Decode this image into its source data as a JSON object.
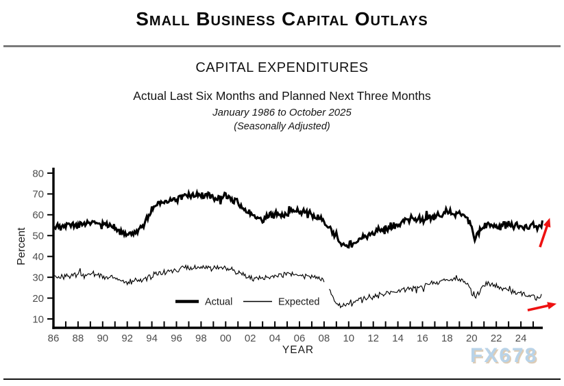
{
  "header": {
    "title": "Small Business Capital Outlays",
    "divider_color": "#7a7a7a"
  },
  "chart_header": {
    "title": "CAPITAL EXPENDITURES",
    "subtitle": "Actual Last Six Months and Planned Next Three Months",
    "period": "January 1986 to October 2025",
    "note": "(Seasonally Adjusted)"
  },
  "watermark": {
    "text": "FX678",
    "color": "#b9d3e8",
    "shadow_color": "#ddccb6"
  },
  "footer": {
    "rule_color": "#141414"
  },
  "chart_data": {
    "type": "line",
    "title": "CAPITAL EXPENDITURES",
    "xlabel": "YEAR",
    "ylabel": "Percent",
    "frequency": "monthly",
    "x_range": [
      1986.0,
      2025.75
    ],
    "ylim": [
      10,
      80
    ],
    "y_ticks": [
      10,
      20,
      30,
      40,
      50,
      60,
      70,
      80
    ],
    "x_ticks": [
      {
        "year": 1986,
        "label": "86"
      },
      {
        "year": 1988,
        "label": "88"
      },
      {
        "year": 1990,
        "label": "90"
      },
      {
        "year": 1992,
        "label": "92"
      },
      {
        "year": 1994,
        "label": "94"
      },
      {
        "year": 1996,
        "label": "96"
      },
      {
        "year": 1998,
        "label": "98"
      },
      {
        "year": 2000,
        "label": "00"
      },
      {
        "year": 2002,
        "label": "02"
      },
      {
        "year": 2004,
        "label": "04"
      },
      {
        "year": 2006,
        "label": "06"
      },
      {
        "year": 2008,
        "label": "08"
      },
      {
        "year": 2010,
        "label": "10"
      },
      {
        "year": 2012,
        "label": "12"
      },
      {
        "year": 2014,
        "label": "14"
      },
      {
        "year": 2016,
        "label": "16"
      },
      {
        "year": 2018,
        "label": "18"
      },
      {
        "year": 2020,
        "label": "20"
      },
      {
        "year": 2022,
        "label": "22"
      },
      {
        "year": 2024,
        "label": "24"
      }
    ],
    "grid": false,
    "legend": {
      "position": "inside-bottom-center",
      "entries": [
        "Actual",
        "Expected"
      ]
    },
    "line_color": "#000000",
    "axis_color": "#000000",
    "tick_label_color": "#4d4d4d",
    "series": [
      {
        "name": "Actual",
        "stroke_width": 3.1,
        "noise_amplitude": 2.1,
        "segments": [
          [
            [
              1986.0,
              55
            ],
            [
              1986.7,
              54
            ],
            [
              1987.5,
              55
            ],
            [
              1988.5,
              55.5
            ],
            [
              1989.3,
              56.5
            ],
            [
              1990.2,
              55.5
            ],
            [
              1991.0,
              53.5
            ],
            [
              1991.8,
              51
            ],
            [
              1992.8,
              51.5
            ],
            [
              1993.5,
              57
            ],
            [
              1994.2,
              64
            ],
            [
              1995.0,
              66
            ],
            [
              1996.0,
              68
            ],
            [
              1997.0,
              69.5
            ],
            [
              1998.2,
              69.5
            ],
            [
              1999.0,
              68
            ],
            [
              2000.2,
              68.5
            ],
            [
              2001.0,
              65.5
            ],
            [
              2002.0,
              61
            ],
            [
              2003.0,
              58
            ],
            [
              2004.0,
              60
            ],
            [
              2005.0,
              61
            ],
            [
              2006.2,
              62
            ],
            [
              2007.0,
              60.5
            ],
            [
              2008.0,
              56.5
            ],
            [
              2008.8,
              51
            ],
            [
              2009.5,
              45.5
            ],
            [
              2010.2,
              45.5
            ],
            [
              2011.0,
              48.5
            ],
            [
              2012.0,
              51.5
            ],
            [
              2013.0,
              53.5
            ],
            [
              2014.0,
              55.5
            ],
            [
              2015.0,
              58
            ],
            [
              2016.0,
              57.5
            ],
            [
              2017.0,
              59
            ],
            [
              2018.0,
              60.5
            ],
            [
              2018.8,
              60.5
            ],
            [
              2019.6,
              58.5
            ],
            [
              2020.25,
              48.5
            ],
            [
              2020.7,
              52.5
            ],
            [
              2021.3,
              55.5
            ],
            [
              2022.0,
              54.5
            ],
            [
              2022.8,
              55
            ],
            [
              2023.5,
              54.5
            ],
            [
              2024.2,
              54
            ],
            [
              2024.9,
              55
            ],
            [
              2025.4,
              53.5
            ],
            [
              2025.75,
              55.5
            ]
          ]
        ]
      },
      {
        "name": "Expected",
        "stroke_width": 1.15,
        "noise_amplitude": 1.6,
        "gap_note": "line breaks between Jan 2008 and May 2008",
        "segments": [
          [
            [
              1986.0,
              30
            ],
            [
              1987.0,
              30.5
            ],
            [
              1988.0,
              31.5
            ],
            [
              1989.0,
              31.5
            ],
            [
              1990.0,
              30.5
            ],
            [
              1991.0,
              29
            ],
            [
              1992.0,
              27.5
            ],
            [
              1993.0,
              28.5
            ],
            [
              1994.0,
              31
            ],
            [
              1995.0,
              32.5
            ],
            [
              1996.0,
              33.5
            ],
            [
              1997.0,
              35
            ],
            [
              1998.0,
              35
            ],
            [
              1999.0,
              34.5
            ],
            [
              2000.0,
              34.5
            ],
            [
              2001.0,
              32
            ],
            [
              2002.0,
              29.5
            ],
            [
              2003.0,
              29.5
            ],
            [
              2004.0,
              30.5
            ],
            [
              2005.0,
              31.5
            ],
            [
              2006.0,
              31
            ],
            [
              2007.0,
              30.5
            ],
            [
              2008.0,
              28.5
            ]
          ],
          [
            [
              2008.42,
              24
            ],
            [
              2008.9,
              18
            ],
            [
              2009.4,
              16.5
            ],
            [
              2010.0,
              17.5
            ],
            [
              2011.0,
              19.5
            ],
            [
              2012.0,
              21
            ],
            [
              2013.0,
              22
            ],
            [
              2014.0,
              23.5
            ],
            [
              2015.0,
              24.5
            ],
            [
              2016.0,
              25.5
            ],
            [
              2017.0,
              27.5
            ],
            [
              2018.0,
              29
            ],
            [
              2018.8,
              29
            ],
            [
              2019.6,
              27.5
            ],
            [
              2020.3,
              19.5
            ],
            [
              2021.0,
              26.5
            ],
            [
              2021.8,
              26.5
            ],
            [
              2022.5,
              25
            ],
            [
              2023.3,
              23
            ],
            [
              2024.0,
              22
            ],
            [
              2024.8,
              21
            ],
            [
              2025.3,
              20
            ],
            [
              2025.75,
              21.5
            ]
          ]
        ]
      }
    ],
    "annotations": [
      {
        "type": "arrow",
        "series": "Actual",
        "color": "#ee1111",
        "from": [
          2025.55,
          44.5
        ],
        "to": [
          2026.35,
          58.5
        ]
      },
      {
        "type": "arrow",
        "series": "Expected",
        "color": "#ee1111",
        "from": [
          2024.55,
          14.2
        ],
        "to": [
          2026.9,
          17.3
        ]
      }
    ]
  }
}
